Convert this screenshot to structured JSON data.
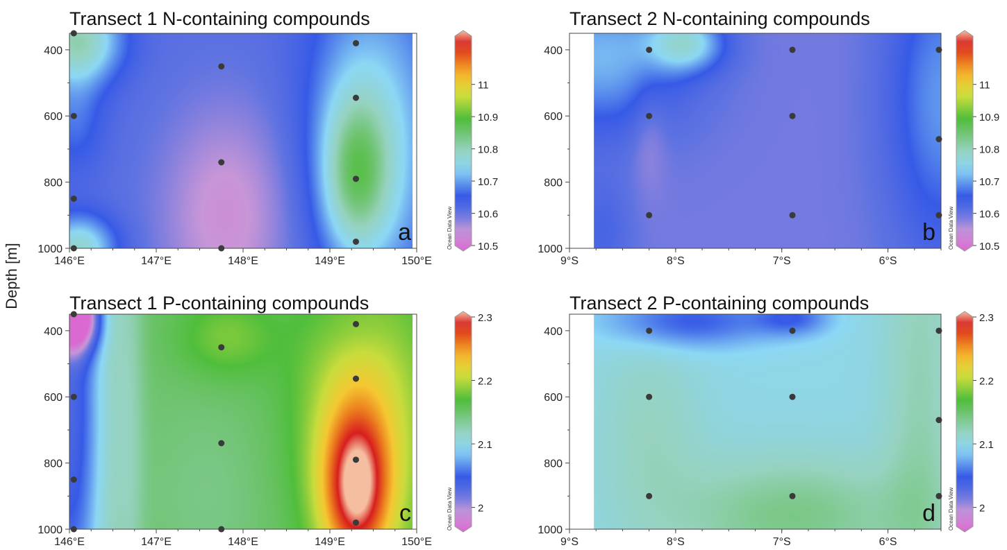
{
  "figure": {
    "shared_ylabel": "Depth [m]",
    "colorbar_watermark": "Ocean Data View"
  },
  "chart_data": [
    {
      "type": "heatmap",
      "panel_letter": "a",
      "title": "Transect 1 N-containing compounds",
      "xlabel": "",
      "ylabel": "Depth [m]",
      "x_ticks": [
        "146°E",
        "147°E",
        "148°E",
        "149°E",
        "150°E"
      ],
      "x_tick_values": [
        146,
        147,
        148,
        149,
        150
      ],
      "xlim": [
        146,
        150
      ],
      "y_ticks": [
        400,
        600,
        800,
        1000
      ],
      "ylim": [
        350,
        1000
      ],
      "y_inverted": true,
      "colorbar": {
        "ticks": [
          10.5,
          10.6,
          10.7,
          10.8,
          10.9,
          11
        ],
        "range": [
          10.5,
          11.15
        ],
        "colormap": "odv"
      },
      "data_extent_x": [
        146,
        149.95
      ],
      "sample_points": [
        {
          "x": 146.05,
          "y": 350
        },
        {
          "x": 146.05,
          "y": 600
        },
        {
          "x": 146.05,
          "y": 850
        },
        {
          "x": 146.05,
          "y": 1000
        },
        {
          "x": 147.75,
          "y": 450
        },
        {
          "x": 147.75,
          "y": 740
        },
        {
          "x": 147.75,
          "y": 1000
        },
        {
          "x": 149.3,
          "y": 380
        },
        {
          "x": 149.3,
          "y": 545
        },
        {
          "x": 149.3,
          "y": 790
        },
        {
          "x": 149.3,
          "y": 980
        }
      ],
      "background": 10.62,
      "field": [
        {
          "x": 146.1,
          "y": 370,
          "value": 10.8,
          "sx": 0.35,
          "sy": 90
        },
        {
          "x": 146.1,
          "y": 1000,
          "value": 10.78,
          "sx": 0.3,
          "sy": 70
        },
        {
          "x": 149.3,
          "y": 780,
          "value": 10.78,
          "sx": 0.28,
          "sy": 170
        },
        {
          "x": 149.3,
          "y": 600,
          "value": 10.71,
          "sx": 0.45,
          "sy": 330
        },
        {
          "x": 147.8,
          "y": 900,
          "value": 10.55,
          "sx": 0.55,
          "sy": 240
        },
        {
          "x": 146.05,
          "y": 600,
          "value": 10.68,
          "sx": 0.25,
          "sy": 120
        },
        {
          "x": 149.9,
          "y": 700,
          "value": 10.68,
          "sx": 0.4,
          "sy": 400
        }
      ]
    },
    {
      "type": "heatmap",
      "panel_letter": "b",
      "title": "Transect 2 N-containing compounds",
      "xlabel": "",
      "ylabel": "",
      "x_ticks": [
        "9°S",
        "8°S",
        "7°S",
        "6°S"
      ],
      "x_tick_values": [
        -9,
        -8,
        -7,
        -6
      ],
      "xlim": [
        -9,
        -5.5
      ],
      "y_ticks": [
        400,
        600,
        800,
        1000
      ],
      "ylim": [
        350,
        1000
      ],
      "y_inverted": true,
      "colorbar": {
        "ticks": [
          10.5,
          10.6,
          10.7,
          10.8,
          10.9,
          11
        ],
        "range": [
          10.5,
          11.15
        ],
        "colormap": "odv"
      },
      "data_extent_x": [
        -8.77,
        -5.5
      ],
      "sample_points": [
        {
          "x": -8.25,
          "y": 400
        },
        {
          "x": -8.25,
          "y": 600
        },
        {
          "x": -8.25,
          "y": 900
        },
        {
          "x": -6.9,
          "y": 400
        },
        {
          "x": -6.9,
          "y": 600
        },
        {
          "x": -6.9,
          "y": 900
        },
        {
          "x": -5.52,
          "y": 400
        },
        {
          "x": -5.52,
          "y": 670
        },
        {
          "x": -5.52,
          "y": 900
        }
      ],
      "background": 10.6,
      "field": [
        {
          "x": -8.7,
          "y": 420,
          "value": 10.72,
          "sx": 0.55,
          "sy": 160
        },
        {
          "x": -7.9,
          "y": 380,
          "value": 10.74,
          "sx": 0.25,
          "sy": 60
        },
        {
          "x": -5.5,
          "y": 550,
          "value": 10.7,
          "sx": 0.35,
          "sy": 330
        },
        {
          "x": -8.25,
          "y": 650,
          "value": 10.57,
          "sx": 0.12,
          "sy": 120
        },
        {
          "x": -8.7,
          "y": 950,
          "value": 10.64,
          "sx": 0.2,
          "sy": 120
        }
      ]
    },
    {
      "type": "heatmap",
      "panel_letter": "c",
      "title": "Transect 1 P-containing compounds",
      "xlabel": "",
      "ylabel": "Depth [m]",
      "x_ticks": [
        "146°E",
        "147°E",
        "148°E",
        "149°E",
        "150°E"
      ],
      "x_tick_values": [
        146,
        147,
        148,
        149,
        150
      ],
      "xlim": [
        146,
        150
      ],
      "y_ticks": [
        400,
        600,
        800,
        1000
      ],
      "ylim": [
        350,
        1000
      ],
      "y_inverted": true,
      "colorbar": {
        "ticks": [
          2,
          2.1,
          2.2,
          2.3
        ],
        "range": [
          1.97,
          2.3
        ],
        "colormap": "odv"
      },
      "data_extent_x": [
        146,
        149.95
      ],
      "sample_points": [
        {
          "x": 146.05,
          "y": 350
        },
        {
          "x": 146.05,
          "y": 600
        },
        {
          "x": 146.05,
          "y": 850
        },
        {
          "x": 146.05,
          "y": 1000
        },
        {
          "x": 147.75,
          "y": 450
        },
        {
          "x": 147.75,
          "y": 740
        },
        {
          "x": 147.75,
          "y": 1000
        },
        {
          "x": 149.3,
          "y": 380
        },
        {
          "x": 149.3,
          "y": 545
        },
        {
          "x": 149.3,
          "y": 790
        },
        {
          "x": 149.3,
          "y": 980
        }
      ],
      "background": 2.15,
      "field": [
        {
          "x": 146.0,
          "y": 650,
          "value": 2.04,
          "sx": 0.3,
          "sy": 600
        },
        {
          "x": 146.05,
          "y": 360,
          "value": 2.0,
          "sx": 0.2,
          "sy": 70
        },
        {
          "x": 146.7,
          "y": 650,
          "value": 2.13,
          "sx": 0.12,
          "sy": 600
        },
        {
          "x": 147.6,
          "y": 900,
          "value": 2.14,
          "sx": 0.55,
          "sy": 220
        },
        {
          "x": 147.8,
          "y": 420,
          "value": 2.18,
          "sx": 0.4,
          "sy": 90
        },
        {
          "x": 149.3,
          "y": 880,
          "value": 2.27,
          "sx": 0.28,
          "sy": 170
        },
        {
          "x": 149.4,
          "y": 650,
          "value": 2.21,
          "sx": 0.55,
          "sy": 330
        },
        {
          "x": 149.3,
          "y": 380,
          "value": 2.14,
          "sx": 0.35,
          "sy": 80
        }
      ]
    },
    {
      "type": "heatmap",
      "panel_letter": "d",
      "title": "Transect 2 P-containing compounds",
      "xlabel": "",
      "ylabel": "",
      "x_ticks": [
        "9°S",
        "8°S",
        "7°S",
        "6°S"
      ],
      "x_tick_values": [
        -9,
        -8,
        -7,
        -6
      ],
      "xlim": [
        -9,
        -5.5
      ],
      "y_ticks": [
        400,
        600,
        800,
        1000
      ],
      "ylim": [
        350,
        1000
      ],
      "y_inverted": true,
      "colorbar": {
        "ticks": [
          2,
          2.1,
          2.2,
          2.3
        ],
        "range": [
          1.97,
          2.3
        ],
        "colormap": "odv"
      },
      "data_extent_x": [
        -8.77,
        -5.5
      ],
      "sample_points": [
        {
          "x": -8.25,
          "y": 400
        },
        {
          "x": -8.25,
          "y": 600
        },
        {
          "x": -8.25,
          "y": 900
        },
        {
          "x": -6.9,
          "y": 400
        },
        {
          "x": -6.9,
          "y": 600
        },
        {
          "x": -6.9,
          "y": 900
        },
        {
          "x": -5.52,
          "y": 400
        },
        {
          "x": -5.52,
          "y": 670
        },
        {
          "x": -5.52,
          "y": 900
        }
      ],
      "background": 2.1,
      "field": [
        {
          "x": -7.9,
          "y": 370,
          "value": 2.05,
          "sx": 0.55,
          "sy": 60
        },
        {
          "x": -6.9,
          "y": 360,
          "value": 2.06,
          "sx": 0.25,
          "sy": 40
        },
        {
          "x": -8.25,
          "y": 700,
          "value": 2.12,
          "sx": 0.35,
          "sy": 220
        },
        {
          "x": -6.9,
          "y": 960,
          "value": 2.14,
          "sx": 0.8,
          "sy": 130
        },
        {
          "x": -5.7,
          "y": 650,
          "value": 2.125,
          "sx": 0.25,
          "sy": 600
        }
      ]
    }
  ]
}
